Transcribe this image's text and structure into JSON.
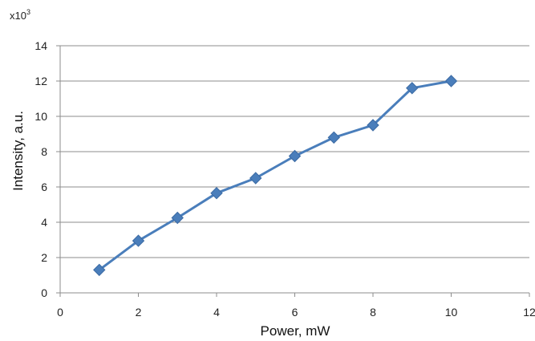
{
  "chart_data": {
    "type": "line",
    "xlabel": "Power, mW",
    "ylabel": "Intensity, a.u.",
    "y_multiplier": "x10",
    "y_multiplier_exp": "3",
    "xlim": [
      0,
      12
    ],
    "ylim": [
      0,
      14
    ],
    "xticks": [
      "0",
      "2",
      "4",
      "6",
      "8",
      "10",
      "12"
    ],
    "yticks": [
      "0",
      "2",
      "4",
      "6",
      "8",
      "10",
      "12",
      "14"
    ],
    "grid": "horizontal",
    "series": [
      {
        "x": [
          1,
          2,
          3,
          4,
          5,
          6,
          7,
          8,
          9,
          10
        ],
        "y": [
          1.3,
          2.95,
          4.25,
          5.65,
          6.5,
          7.75,
          8.8,
          9.5,
          11.6,
          12.0
        ],
        "color": "#4a7ebb",
        "marker": "diamond"
      }
    ]
  }
}
